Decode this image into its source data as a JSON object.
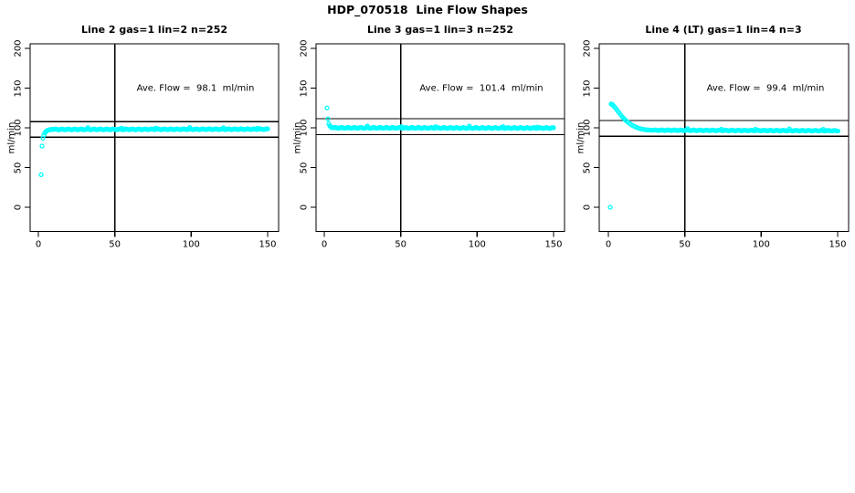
{
  "page": {
    "background": "#ffffff",
    "main_title": "HDP_070518  Line Flow Shapes"
  },
  "chart_data": [
    {
      "type": "scatter",
      "title": "Line 2 gas=1 lin=2 n=252",
      "annotation": "Ave. Flow =  98.1  ml/min",
      "ave_flow_ml_min": 98.1,
      "n_points": 252,
      "ylabel": "ml/min",
      "xticks": [
        0,
        50,
        100,
        150
      ],
      "yticks": [
        0,
        50,
        100,
        150,
        200
      ],
      "xlim": [
        -5,
        157
      ],
      "ylim": [
        -30,
        205
      ],
      "vline_x": 50,
      "hlines": [
        88.3,
        107.9
      ],
      "marker_color": "#00ffff",
      "line_color": "#000000",
      "leadin_points": [
        [
          1.8,
          41
        ],
        [
          2.4,
          77
        ],
        [
          3.0,
          87
        ],
        [
          3.6,
          91
        ],
        [
          4.2,
          93.5
        ],
        [
          4.8,
          95
        ],
        [
          5.4,
          96
        ],
        [
          6.0,
          96.8
        ],
        [
          6.6,
          97.3
        ],
        [
          7.2,
          97.6
        ],
        [
          7.8,
          97.8
        ],
        [
          8.4,
          98.0
        ],
        [
          9.0,
          98.0
        ],
        [
          9.6,
          98.1
        ]
      ],
      "steady": {
        "x_start": 10.2,
        "x_end": 150,
        "x_step": 0.6,
        "y_start": 98.0,
        "y_end": 98.3,
        "wiggle": 1.0
      }
    },
    {
      "type": "scatter",
      "title": "Line 3 gas=1 lin=3 n=252",
      "annotation": "Ave. Flow =  101.4  ml/min",
      "ave_flow_ml_min": 101.4,
      "n_points": 252,
      "ylabel": "ml/min",
      "xticks": [
        0,
        50,
        100,
        150
      ],
      "yticks": [
        0,
        50,
        100,
        150,
        200
      ],
      "xlim": [
        -5,
        157
      ],
      "ylim": [
        -30,
        205
      ],
      "vline_x": 50,
      "hlines": [
        91.3,
        111.5
      ],
      "marker_color": "#00ffff",
      "line_color": "#000000",
      "leadin_points": [
        [
          1.8,
          125
        ],
        [
          2.4,
          111
        ],
        [
          3.0,
          105
        ],
        [
          3.6,
          102.5
        ],
        [
          4.2,
          101
        ],
        [
          4.8,
          100.4
        ],
        [
          5.4,
          100.1
        ]
      ],
      "steady": {
        "x_start": 6.0,
        "x_end": 150,
        "x_step": 0.6,
        "y_start": 100.0,
        "y_end": 99.7,
        "wiggle": 1.0
      }
    },
    {
      "type": "scatter",
      "title": "Line 4 (LT) gas=1 lin=4 n=3",
      "annotation": "Ave. Flow =  99.4  ml/min",
      "ave_flow_ml_min": 99.4,
      "n_points": 3,
      "ylabel": "ml/min",
      "xticks": [
        0,
        50,
        100,
        150
      ],
      "yticks": [
        0,
        50,
        100,
        150,
        200
      ],
      "xlim": [
        -5,
        157
      ],
      "ylim": [
        -30,
        205
      ],
      "vline_x": 50,
      "hlines": [
        89.5,
        109.3
      ],
      "marker_color": "#00ffff",
      "line_color": "#000000",
      "leadin_points": [
        [
          1.2,
          0
        ],
        [
          1.8,
          130
        ],
        [
          2.4,
          129.5
        ],
        [
          3,
          128.6
        ],
        [
          4,
          126.5
        ],
        [
          5,
          124
        ],
        [
          6,
          121.5
        ],
        [
          7,
          119
        ],
        [
          8,
          116.5
        ],
        [
          9,
          114
        ],
        [
          10,
          112
        ],
        [
          11,
          110
        ],
        [
          12,
          108.3
        ],
        [
          13,
          106.8
        ],
        [
          14,
          105.3
        ],
        [
          15,
          104
        ],
        [
          16,
          102.8
        ],
        [
          17,
          101.8
        ],
        [
          18,
          100.9
        ],
        [
          19,
          100.1
        ],
        [
          20,
          99.4
        ],
        [
          21,
          98.9
        ],
        [
          22,
          98.4
        ],
        [
          23,
          98.0
        ],
        [
          24,
          97.7
        ],
        [
          25,
          97.5
        ],
        [
          26,
          97.3
        ],
        [
          27,
          97.2
        ],
        [
          28,
          97.1
        ],
        [
          29,
          97.0
        ]
      ],
      "steady": {
        "x_start": 29.6,
        "x_end": 150,
        "x_step": 0.6,
        "y_start": 97.0,
        "y_end": 96.3,
        "wiggle": 0.8
      }
    }
  ]
}
